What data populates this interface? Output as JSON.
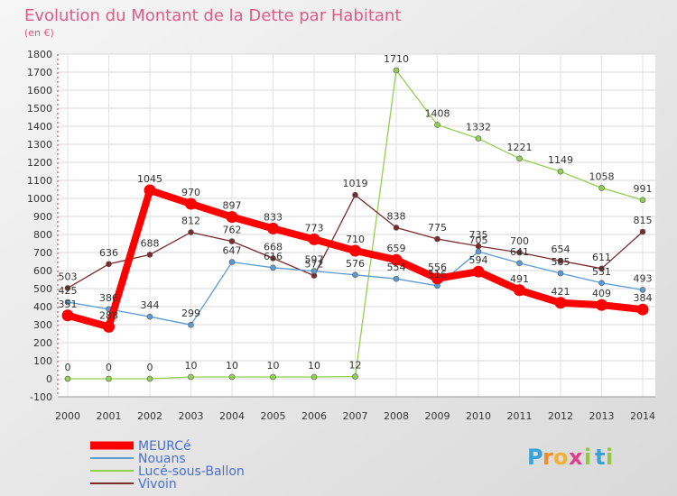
{
  "chart_data": {
    "type": "line",
    "title": "Evolution du Montant de la Dette par Habitant",
    "subtitle": "(en €)",
    "xlabel": "",
    "ylabel": "",
    "categories": [
      "2000",
      "2001",
      "2002",
      "2003",
      "2004",
      "2005",
      "2006",
      "2007",
      "2008",
      "2009",
      "2010",
      "2011",
      "2012",
      "2013",
      "2014"
    ],
    "ylim": [
      -100,
      1800
    ],
    "yticks": [
      -100,
      0,
      100,
      200,
      300,
      400,
      500,
      600,
      700,
      800,
      900,
      1000,
      1100,
      1200,
      1300,
      1400,
      1500,
      1600,
      1700,
      1800
    ],
    "grid": true,
    "legend_position": "bottom-left",
    "series": [
      {
        "name": "MEURCé",
        "color": "#ff0000",
        "values": [
          351,
          288,
          1045,
          970,
          897,
          833,
          773,
          710,
          659,
          556,
          594,
          491,
          421,
          409,
          384
        ]
      },
      {
        "name": "Nouans",
        "color": "#5b9bd5",
        "values": [
          425,
          386,
          344,
          299,
          647,
          616,
          597,
          576,
          554,
          516,
          705,
          641,
          585,
          531,
          493
        ]
      },
      {
        "name": "Lucé-sous-Ballon",
        "color": "#92d050",
        "values": [
          0,
          0,
          0,
          10,
          10,
          10,
          10,
          12,
          1710,
          1408,
          1332,
          1221,
          1149,
          1058,
          991
        ]
      },
      {
        "name": "Vivoin",
        "color": "#7b2b2b",
        "values": [
          503,
          636,
          688,
          812,
          762,
          668,
          572,
          1019,
          838,
          775,
          735,
          700,
          654,
          611,
          815
        ]
      }
    ]
  },
  "brand": {
    "letters": [
      "P",
      "r",
      "o",
      "x",
      "i",
      "t",
      "i"
    ]
  }
}
